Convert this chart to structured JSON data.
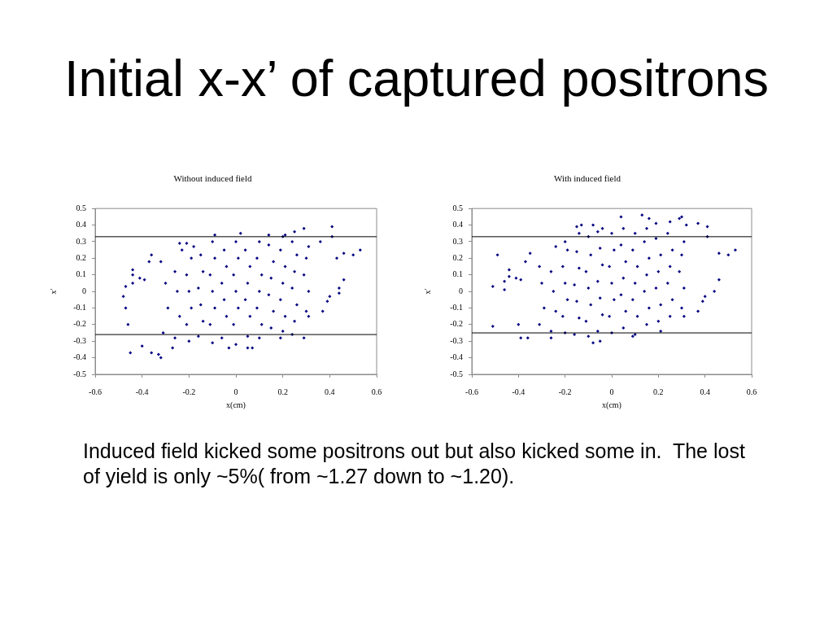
{
  "chart_data": [
    {
      "type": "other",
      "title": "Initial x-x’ of captured positrons"
    },
    {
      "type": "scatter",
      "title": "Without induced field",
      "xlabel": "x(cm)",
      "ylabel": "x'",
      "xlim": [
        -0.6,
        0.6
      ],
      "xticks": [
        -0.6,
        -0.4,
        -0.2,
        0,
        0.2,
        0.4,
        0.6
      ],
      "ylim": [
        -0.5,
        0.5
      ],
      "yticks": [
        -0.5,
        -0.4,
        -0.3,
        -0.2,
        -0.1,
        0,
        0.1,
        0.2,
        0.3,
        0.4,
        0.5
      ],
      "grid": false,
      "legend": false,
      "marker": "diamond",
      "ref_lines": [
        {
          "axis": "y",
          "value": 0.33,
          "color": "#000000"
        },
        {
          "axis": "y",
          "value": -0.26,
          "color": "#000000"
        }
      ],
      "series": [
        {
          "color": "#000080",
          "x": [
            -0.48,
            -0.47,
            -0.46,
            -0.45,
            -0.47,
            -0.44,
            -0.44,
            -0.44,
            -0.41,
            -0.39,
            -0.4,
            -0.36,
            -0.33,
            -0.32,
            -0.36,
            -0.37,
            -0.27,
            -0.24,
            -0.21,
            -0.09,
            0.02,
            -0.03,
            0.05,
            0.07,
            0.14,
            0.21,
            0.25,
            0.29,
            0.41,
            0.41,
            0.53,
            0.5,
            0.46,
            0.46,
            0.44,
            0.44,
            0.43,
            0.4,
            0.39,
            0.37,
            0.31,
            0.29,
            0.24,
            0.19,
            0.36,
            -0.31,
            -0.29,
            -0.3,
            -0.32,
            -0.26,
            -0.24,
            -0.25,
            -0.26,
            -0.23,
            -0.2,
            -0.21,
            -0.19,
            -0.2,
            -0.21,
            -0.19,
            -0.18,
            -0.16,
            -0.14,
            -0.15,
            -0.16,
            -0.14,
            -0.15,
            -0.1,
            -0.11,
            -0.09,
            -0.1,
            -0.11,
            -0.09,
            -0.1,
            -0.06,
            -0.04,
            -0.05,
            -0.06,
            -0.04,
            -0.05,
            0,
            -0.01,
            0.01,
            0,
            -0.01,
            0.01,
            0,
            0.05,
            0.06,
            0.04,
            0.05,
            0.06,
            0.04,
            0.1,
            0.11,
            0.09,
            0.1,
            0.11,
            0.09,
            0.1,
            0.15,
            0.16,
            0.14,
            0.15,
            0.16,
            0.14,
            0.2,
            0.21,
            0.19,
            0.2,
            0.21,
            0.19,
            0.2,
            0.25,
            0.26,
            0.24,
            0.25,
            0.26,
            0.24,
            0.3,
            0.31,
            0.29,
            0.3,
            0.31
          ],
          "values": [
            -0.03,
            -0.1,
            -0.2,
            -0.37,
            0.03,
            0.13,
            0.1,
            0.05,
            0.08,
            0.07,
            -0.33,
            -0.37,
            -0.38,
            -0.4,
            0.22,
            0.18,
            -0.34,
            0.29,
            0.29,
            0.34,
            0.35,
            -0.34,
            -0.34,
            -0.34,
            0.34,
            0.34,
            0.36,
            0.38,
            0.39,
            0.33,
            0.25,
            0.22,
            0.23,
            0.07,
            0.02,
            -0.01,
            0.2,
            -0.03,
            -0.06,
            -0.12,
            -0.15,
            -0.28,
            -0.26,
            -0.28,
            0.3,
            -0.25,
            -0.1,
            0.05,
            0.18,
            -0.28,
            -0.15,
            0,
            0.12,
            0.25,
            -0.3,
            -0.2,
            -0.1,
            0,
            0.1,
            0.2,
            0.27,
            -0.27,
            -0.18,
            -0.08,
            0.02,
            0.12,
            0.22,
            -0.31,
            -0.2,
            -0.1,
            0,
            0.1,
            0.2,
            0.3,
            -0.28,
            -0.15,
            -0.05,
            0.05,
            0.15,
            0.25,
            -0.32,
            -0.2,
            -0.1,
            0,
            0.1,
            0.2,
            0.3,
            -0.27,
            -0.15,
            -0.05,
            0.05,
            0.15,
            0.25,
            -0.28,
            -0.2,
            -0.1,
            0,
            0.1,
            0.2,
            0.3,
            -0.22,
            -0.12,
            -0.02,
            0.08,
            0.18,
            0.28,
            -0.24,
            -0.15,
            -0.05,
            0.05,
            0.15,
            0.25,
            0.33,
            -0.18,
            -0.08,
            0.02,
            0.12,
            0.22,
            0.3,
            -0.12,
            0,
            0.1,
            0.2,
            0.27
          ]
        }
      ]
    },
    {
      "type": "scatter",
      "title": "With induced field",
      "xlabel": "x(cm)",
      "ylabel": "x'",
      "xlim": [
        -0.6,
        0.6
      ],
      "xticks": [
        -0.6,
        -0.4,
        -0.2,
        0,
        0.2,
        0.4,
        0.6
      ],
      "ylim": [
        -0.5,
        0.5
      ],
      "yticks": [
        -0.5,
        -0.4,
        -0.3,
        -0.2,
        -0.1,
        0,
        0.1,
        0.2,
        0.3,
        0.4,
        0.5
      ],
      "grid": false,
      "legend": false,
      "marker": "diamond",
      "ref_lines": [
        {
          "axis": "y",
          "value": 0.33,
          "color": "#000000"
        },
        {
          "axis": "y",
          "value": -0.25,
          "color": "#000000"
        }
      ],
      "series": [
        {
          "color": "#000080",
          "x": [
            -0.51,
            -0.49,
            -0.51,
            -0.46,
            -0.46,
            -0.44,
            -0.44,
            -0.41,
            -0.39,
            -0.4,
            -0.39,
            -0.36,
            -0.37,
            -0.35,
            -0.26,
            -0.15,
            -0.13,
            -0.08,
            -0.04,
            -0.08,
            -0.05,
            0.04,
            0.13,
            0.16,
            0.19,
            0.25,
            0.29,
            0.3,
            0.32,
            0.37,
            0.41,
            0.41,
            0.53,
            0.5,
            0.46,
            0.46,
            0.44,
            0.4,
            0.39,
            0.37,
            0.31,
            0.09,
            0.21,
            -0.31,
            -0.29,
            -0.3,
            -0.31,
            -0.26,
            -0.24,
            -0.25,
            -0.26,
            -0.24,
            -0.2,
            -0.21,
            -0.19,
            -0.2,
            -0.21,
            -0.19,
            -0.2,
            -0.16,
            -0.14,
            -0.15,
            -0.16,
            -0.14,
            -0.15,
            -0.14,
            -0.1,
            -0.11,
            -0.09,
            -0.1,
            -0.11,
            -0.09,
            -0.1,
            -0.06,
            -0.04,
            -0.05,
            -0.06,
            -0.04,
            -0.05,
            -0.06,
            0,
            -0.01,
            0.01,
            0,
            -0.01,
            0.01,
            0,
            0.05,
            0.06,
            0.04,
            0.05,
            0.06,
            0.04,
            0.05,
            0.1,
            0.11,
            0.09,
            0.1,
            0.11,
            0.09,
            0.1,
            0.15,
            0.16,
            0.14,
            0.15,
            0.16,
            0.14,
            0.15,
            0.2,
            0.21,
            0.19,
            0.2,
            0.21,
            0.19,
            0.25,
            0.26,
            0.24,
            0.25,
            0.26,
            0.24,
            0.3,
            0.31,
            0.29,
            0.3,
            0.31
          ],
          "values": [
            0.03,
            0.22,
            -0.21,
            0.06,
            0.01,
            0.13,
            0.09,
            0.08,
            0.07,
            -0.2,
            -0.28,
            -0.28,
            0.18,
            0.23,
            -0.28,
            0.39,
            0.4,
            0.4,
            0.38,
            -0.31,
            -0.3,
            0.45,
            0.46,
            0.44,
            0.41,
            0.42,
            0.44,
            0.45,
            0.4,
            0.41,
            0.39,
            0.33,
            0.25,
            0.22,
            0.23,
            0.07,
            0,
            -0.03,
            -0.06,
            -0.12,
            -0.15,
            -0.27,
            -0.24,
            -0.2,
            -0.1,
            0.05,
            0.15,
            -0.24,
            -0.12,
            0,
            0.12,
            0.27,
            -0.25,
            -0.15,
            -0.05,
            0.05,
            0.15,
            0.25,
            0.3,
            -0.26,
            -0.16,
            -0.06,
            0.04,
            0.14,
            0.24,
            0.35,
            -0.27,
            -0.18,
            -0.08,
            0.02,
            0.12,
            0.22,
            0.33,
            -0.24,
            -0.14,
            -0.04,
            0.06,
            0.16,
            0.26,
            0.36,
            -0.25,
            -0.15,
            -0.05,
            0.05,
            0.15,
            0.25,
            0.35,
            -0.22,
            -0.12,
            -0.02,
            0.08,
            0.18,
            0.28,
            0.38,
            -0.26,
            -0.15,
            -0.05,
            0.05,
            0.15,
            0.25,
            0.35,
            -0.2,
            -0.1,
            0,
            0.1,
            0.2,
            0.3,
            0.38,
            -0.18,
            -0.08,
            0.02,
            0.12,
            0.22,
            0.32,
            -0.15,
            -0.05,
            0.05,
            0.15,
            0.25,
            0.35,
            -0.1,
            0.02,
            0.12,
            0.22,
            0.3
          ]
        }
      ]
    },
    {
      "type": "other",
      "annotations": [
        "Induced field kicked some positrons out but also kicked some in.  The lost of yield is only ~5%( from ~1.27 down to ~1.20)."
      ]
    }
  ]
}
